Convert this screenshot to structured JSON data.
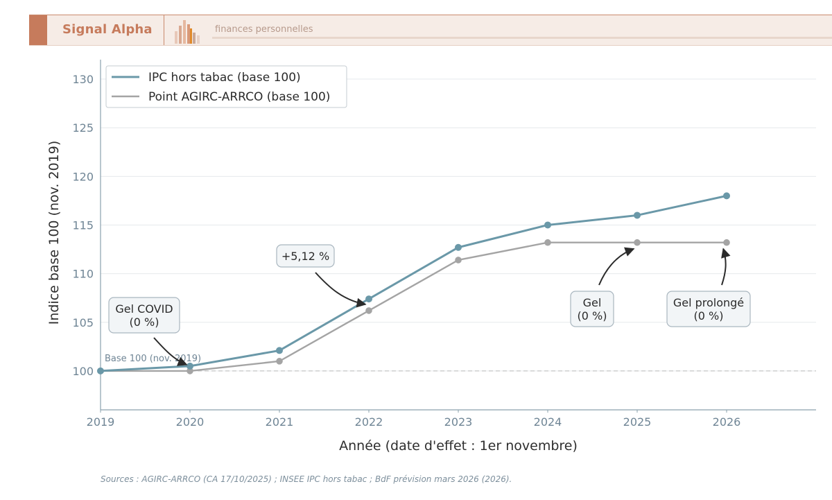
{
  "banner": {
    "brand": "Signal Alpha",
    "tagline": "finances personnelles",
    "colors": {
      "accent": "#c67b5c",
      "background": "#f6ece6"
    }
  },
  "chart_data": {
    "type": "line",
    "title": "",
    "xlabel": "Année (date d'effet : 1er novembre)",
    "ylabel": "Indice base 100 (nov. 2019)",
    "xlim": [
      2019,
      2027
    ],
    "ylim": [
      96,
      132
    ],
    "x_ticks": [
      "2019",
      "2020",
      "2021",
      "2022",
      "2023",
      "2024",
      "2025",
      "2026"
    ],
    "y_ticks": [
      "100",
      "105",
      "110",
      "115",
      "120",
      "125",
      "130"
    ],
    "grid": "horizontal",
    "legend_position": "top-left",
    "series": [
      {
        "name": "IPC hors tabac (base 100)",
        "color": "#6a98a8",
        "x": [
          2019,
          2020,
          2021,
          2022,
          2023,
          2024,
          2025,
          2026
        ],
        "y": [
          100.0,
          100.5,
          102.1,
          107.4,
          112.7,
          115.0,
          116.0,
          118.0
        ]
      },
      {
        "name": "Point AGIRC-ARRCO (base 100)",
        "color": "#a4a4a4",
        "x": [
          2019,
          2020,
          2021,
          2022,
          2023,
          2024,
          2025,
          2026
        ],
        "y": [
          100.0,
          100.0,
          101.0,
          106.2,
          111.4,
          113.2,
          113.2,
          113.2
        ]
      }
    ],
    "reference_line": {
      "y": 100,
      "label": "Base 100 (nov. 2019)"
    },
    "annotations": [
      {
        "text": [
          "Gel COVID",
          "(0 %)"
        ],
        "target": [
          2020,
          100.0
        ]
      },
      {
        "text": [
          "+5,12 %"
        ],
        "target": [
          2022,
          106.2
        ]
      },
      {
        "text": [
          "Gel",
          "(0 %)"
        ],
        "target": [
          2025,
          113.2
        ]
      },
      {
        "text": [
          "Gel prolongé",
          "(0 %)"
        ],
        "target": [
          2026,
          113.2
        ]
      }
    ]
  },
  "footer": {
    "source": "Sources : AGIRC-ARRCO (CA 17/10/2025) ; INSEE IPC hors tabac ; BdF prévision mars 2026 (2026)."
  }
}
